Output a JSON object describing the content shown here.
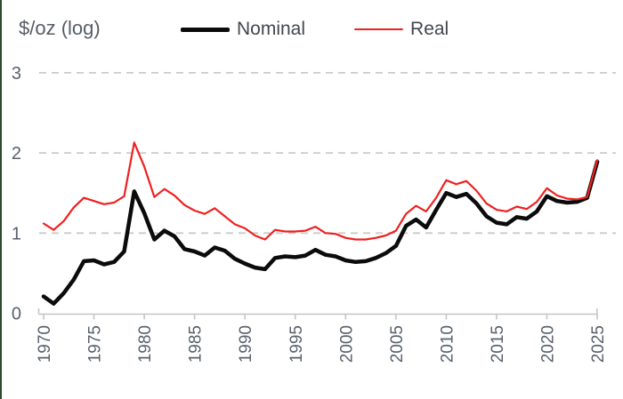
{
  "chart": {
    "axis_title": "$/oz (log)"
  },
  "legend": {
    "items": [
      {
        "label": "Nominal",
        "color": "#0b0b0b",
        "style": "thick"
      },
      {
        "label": "Real",
        "color": "#ee2120",
        "style": "thin"
      }
    ]
  },
  "chart_data": {
    "type": "line",
    "title": "",
    "ylabel": "$/oz (log)",
    "xlabel": "",
    "legend_position": "top",
    "grid": "horizontal dashed gridlines at y=1,2,3",
    "x_start": 1970,
    "x_step": 1,
    "years": [
      1970,
      1971,
      1972,
      1973,
      1974,
      1975,
      1976,
      1977,
      1978,
      1979,
      1980,
      1981,
      1982,
      1983,
      1984,
      1985,
      1986,
      1987,
      1988,
      1989,
      1990,
      1991,
      1992,
      1993,
      1994,
      1995,
      1996,
      1997,
      1998,
      1999,
      2000,
      2001,
      2002,
      2003,
      2004,
      2005,
      2006,
      2007,
      2008,
      2009,
      2010,
      2011,
      2012,
      2013,
      2014,
      2015,
      2016,
      2017,
      2018,
      2019,
      2020,
      2021,
      2022,
      2023,
      2024,
      2025
    ],
    "series": [
      {
        "name": "Nominal",
        "color": "#0b0b0b",
        "stroke_width": 4.5,
        "values": [
          0.21,
          0.12,
          0.25,
          0.42,
          0.65,
          0.66,
          0.61,
          0.64,
          0.77,
          1.52,
          1.25,
          0.92,
          1.03,
          0.96,
          0.8,
          0.77,
          0.72,
          0.82,
          0.78,
          0.68,
          0.62,
          0.57,
          0.55,
          0.69,
          0.71,
          0.7,
          0.72,
          0.79,
          0.73,
          0.71,
          0.66,
          0.64,
          0.65,
          0.69,
          0.75,
          0.84,
          1.09,
          1.17,
          1.07,
          1.29,
          1.5,
          1.45,
          1.49,
          1.37,
          1.21,
          1.13,
          1.11,
          1.2,
          1.18,
          1.27,
          1.46,
          1.4,
          1.38,
          1.39,
          1.44,
          1.89
        ]
      },
      {
        "name": "Real",
        "color": "#ee2120",
        "stroke_width": 2.2,
        "values": [
          1.12,
          1.04,
          1.15,
          1.32,
          1.44,
          1.4,
          1.36,
          1.38,
          1.46,
          2.13,
          1.83,
          1.45,
          1.55,
          1.47,
          1.35,
          1.28,
          1.24,
          1.31,
          1.21,
          1.11,
          1.06,
          0.97,
          0.92,
          1.04,
          1.02,
          1.02,
          1.03,
          1.08,
          1.0,
          0.99,
          0.94,
          0.92,
          0.92,
          0.94,
          0.97,
          1.03,
          1.24,
          1.34,
          1.27,
          1.44,
          1.66,
          1.61,
          1.65,
          1.53,
          1.37,
          1.29,
          1.27,
          1.33,
          1.3,
          1.39,
          1.56,
          1.47,
          1.43,
          1.42,
          1.45,
          1.91
        ]
      }
    ],
    "xticks": [
      "1970",
      "1975",
      "1980",
      "1985",
      "1990",
      "1995",
      "2000",
      "2005",
      "2010",
      "2015",
      "2020",
      "2025"
    ],
    "yticks": [
      "0",
      "1",
      "2",
      "3"
    ],
    "ylim": [
      0,
      3.05
    ],
    "xlim": [
      1970,
      2025
    ]
  },
  "colors": {
    "background": "#ffffff",
    "grid": "#cbcbcb",
    "axis": "#c6c6c6",
    "tick_label": "#58616b",
    "title_text": "#575d64",
    "legend_text": "#42474d",
    "left_edge": "#2c4a2c"
  }
}
